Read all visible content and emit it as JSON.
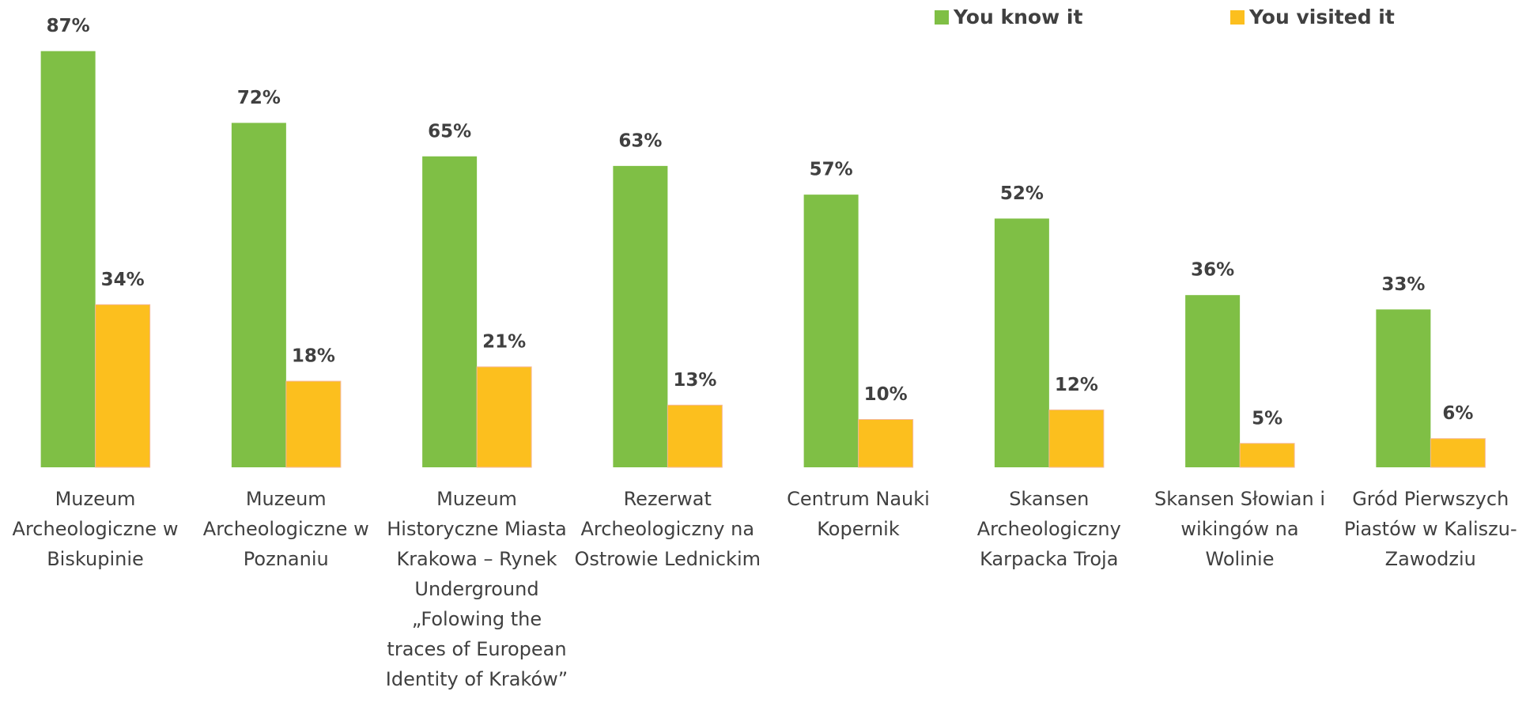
{
  "chart_data": {
    "type": "bar",
    "categories": [
      "Muzeum Archeologiczne w Biskupinie",
      "Muzeum Archeologiczne w Poznaniu",
      "Muzeum Historyczne Miasta Krakowa – Rynek Underground „Folowing the traces of European Identity of Kraków”",
      "Rezerwat Archeologiczny na Ostrowie Lednickim",
      "Centrum Nauki Kopernik",
      "Skansen Archeologiczny Karpacka Troja",
      "Skansen Słowian i wikingów na Wolinie",
      "Gród Pierwszych Piastów w Kaliszu-Zawodziu"
    ],
    "series": [
      {
        "name": "You know it",
        "color": "#7fbf45",
        "values": [
          87,
          72,
          65,
          63,
          57,
          52,
          36,
          33
        ],
        "value_labels": [
          "87%",
          "72%",
          "65%",
          "63%",
          "57%",
          "52%",
          "36%",
          "33%"
        ]
      },
      {
        "name": "You visited it",
        "color": "#fcbf1e",
        "values": [
          34,
          18,
          21,
          13,
          10,
          12,
          5,
          6
        ],
        "value_labels": [
          "34%",
          "18%",
          "21%",
          "13%",
          "10%",
          "12%",
          "5%",
          "6%"
        ]
      }
    ],
    "ylim": [
      0,
      100
    ],
    "grid": false,
    "legend": "top-right"
  }
}
